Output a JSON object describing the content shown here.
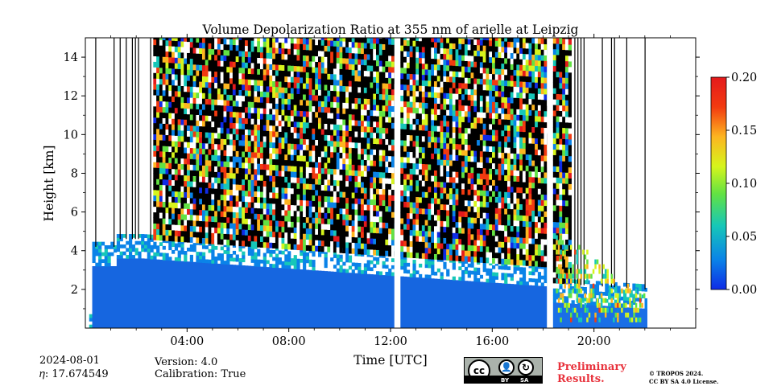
{
  "chart_data": {
    "type": "heatmap",
    "title": "Volume Depolarization Ratio at 355 nm of arielle at Leipzig",
    "xlabel": "Time [UTC]",
    "ylabel": "Height [km]",
    "x_range_hours": [
      0,
      24
    ],
    "ylim": [
      0,
      15
    ],
    "x_ticks": [
      {
        "hour": 4,
        "label": "04:00"
      },
      {
        "hour": 8,
        "label": "08:00"
      },
      {
        "hour": 12,
        "label": "12:00"
      },
      {
        "hour": 16,
        "label": "16:00"
      },
      {
        "hour": 20,
        "label": "20:00"
      }
    ],
    "y_ticks": [
      {
        "value": 2,
        "label": "2"
      },
      {
        "value": 4,
        "label": "4"
      },
      {
        "value": 6,
        "label": "6"
      },
      {
        "value": 8,
        "label": "8"
      },
      {
        "value": 10,
        "label": "10"
      },
      {
        "value": 12,
        "label": "12"
      },
      {
        "value": 14,
        "label": "14"
      }
    ],
    "colorbar": {
      "range": [
        0.0,
        0.2
      ],
      "ticks": [
        "0.00",
        "0.05",
        "0.10",
        "0.15",
        "0.20"
      ],
      "colormap": [
        "#0f2be6",
        "#0a83e8",
        "#16c7b8",
        "#62e243",
        "#d6f51c",
        "#fdb520",
        "#f23a10",
        "#e41a1c"
      ]
    },
    "data_gaps_hours": [
      [
        12.15,
        12.35
      ],
      [
        18.15,
        18.3
      ],
      [
        22.1,
        24.0
      ]
    ],
    "layers": [
      {
        "name": "boundary-layer",
        "start_hour": 0.2,
        "end_hour": 22.0,
        "top_km_start": 3.2,
        "top_km_end": 1.2,
        "ratio": 0.03
      },
      {
        "name": "free-troposphere-noise",
        "ratio_range": [
          0.0,
          0.2
        ]
      },
      {
        "name": "evening-aerosol-layer",
        "start_hour": 18.5,
        "end_hour": 22.0,
        "height_km": [
          0.3,
          5.0
        ],
        "ratio": 0.08
      }
    ],
    "grid": false
  },
  "meta": {
    "date": "2024-08-01",
    "eta": "𝜂: 17.674549",
    "version": "Version: 4.0",
    "calibration": "Calibration: True"
  },
  "license": {
    "badge_strip_left": "BY",
    "badge_strip_right": "SA",
    "badge_cc": "cc",
    "preliminary": "Preliminary\nResults.",
    "copyright": "© TROPOS 2024.\nCC BY SA 4.0 License."
  }
}
